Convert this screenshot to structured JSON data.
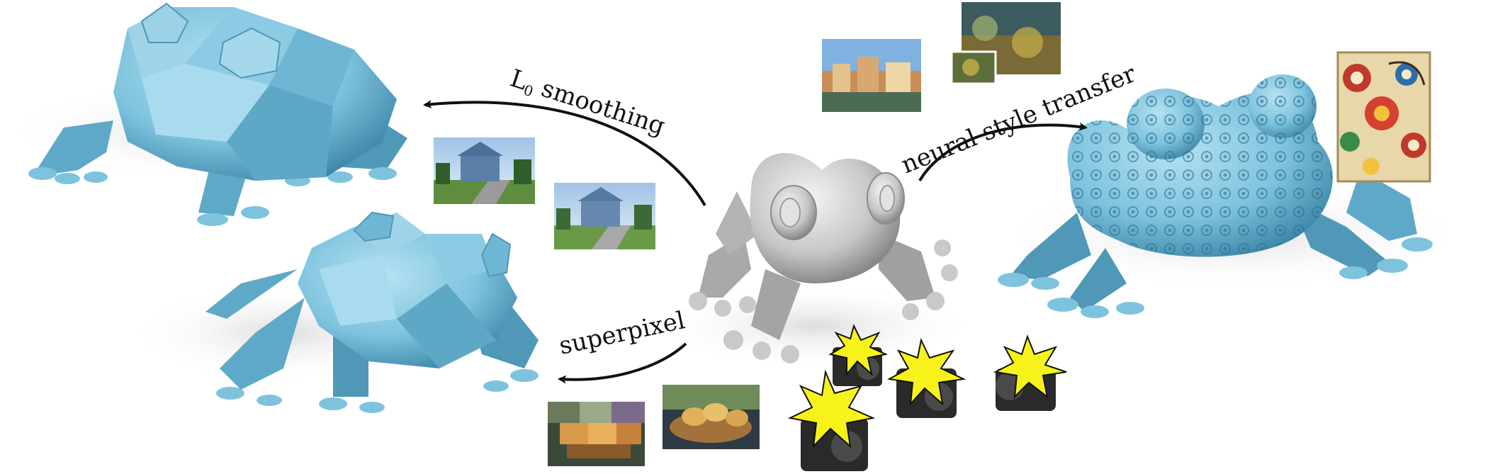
{
  "figure": {
    "labels": {
      "l0_prefix": "L",
      "l0_subscript": "0",
      "l0_rest": " smoothing",
      "style_transfer": "neural style transfer",
      "superpixel": "superpixel"
    },
    "colors": {
      "result_mesh": "#7ec3de",
      "result_mesh_dark": "#4f98b8",
      "source_mesh": "#bdbdbd",
      "source_mesh_dark": "#8c8c8c",
      "arrow": "#111111",
      "starburst": "#f7f31a"
    }
  }
}
